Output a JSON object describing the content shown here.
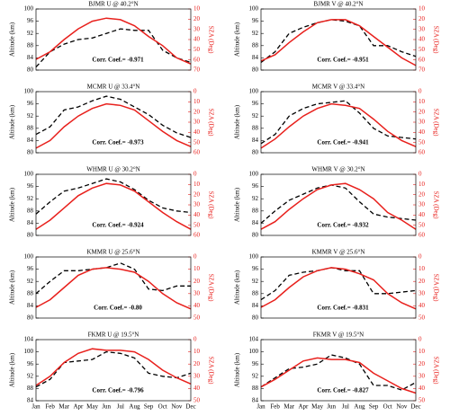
{
  "chart_data": [
    {
      "type": "line",
      "title": "BJMR U @ 40.2°N",
      "ylabel": "Altitude (km)",
      "y2label": "SZA (Deg)",
      "annotation": "Corr. Coef.= -0.971",
      "ylim": [
        80,
        100
      ],
      "yticks": [
        80,
        84,
        88,
        92,
        96,
        100
      ],
      "y2lim": [
        70,
        10
      ],
      "y2ticks": [
        10,
        20,
        30,
        40,
        50,
        60,
        70
      ],
      "y2color": "#e8201c",
      "series": [
        {
          "color": "#000000",
          "style": "dashed",
          "values": [
            81,
            86,
            88.5,
            90,
            90.5,
            92,
            93.5,
            93,
            93,
            86.5,
            84,
            82.5
          ]
        },
        {
          "color": "#e8201c",
          "style": "solid",
          "axis": "y2",
          "values": [
            59.5,
            52,
            40,
            29.5,
            22,
            19,
            20.5,
            26.5,
            37,
            46,
            58,
            64
          ]
        }
      ]
    },
    {
      "type": "line",
      "title": "BJMR V @ 40.2°N",
      "ylabel": "Altitude (km)",
      "y2label": "SZA (Deg)",
      "annotation": "Corr. Coef.= -0.951",
      "ylim": [
        80,
        100
      ],
      "yticks": [
        80,
        84,
        88,
        92,
        96,
        100
      ],
      "y2lim": [
        70,
        10
      ],
      "y2ticks": [
        10,
        20,
        30,
        40,
        50,
        60,
        70
      ],
      "y2color": "#e8201c",
      "series": [
        {
          "color": "#000000",
          "style": "dashed",
          "values": [
            82.5,
            86,
            92,
            94,
            95.5,
            96.5,
            96,
            94.5,
            88,
            88,
            86,
            84.5
          ]
        },
        {
          "color": "#e8201c",
          "style": "solid",
          "axis": "y2",
          "values": [
            61,
            55,
            43,
            32.5,
            23.5,
            20.5,
            20.5,
            26.5,
            37,
            47.5,
            58,
            65.5
          ]
        }
      ]
    },
    {
      "type": "line",
      "title": "MCMR U @ 33.4°N",
      "ylabel": "Altitude (km)",
      "y2label": "SZA (Deg)",
      "annotation": "Corr. Coef.= -0.973",
      "ylim": [
        80,
        100
      ],
      "yticks": [
        80,
        84,
        88,
        92,
        96,
        100
      ],
      "y2lim": [
        60,
        0
      ],
      "y2ticks": [
        0,
        10,
        20,
        30,
        40,
        50,
        60
      ],
      "y2color": "#e8201c",
      "series": [
        {
          "color": "#000000",
          "style": "dashed",
          "values": [
            86,
            88.5,
            94,
            95,
            97,
            98.5,
            97.5,
            95,
            92.5,
            89,
            86.5,
            85
          ]
        },
        {
          "color": "#e8201c",
          "style": "solid",
          "axis": "y2",
          "values": [
            55.5,
            48,
            34.5,
            24,
            16.5,
            12,
            13.5,
            18,
            28.5,
            39,
            48,
            54
          ]
        }
      ]
    },
    {
      "type": "line",
      "title": "MCMR V @ 33.4°N",
      "ylabel": "Altitude (km)",
      "y2label": "SZA (Deg)",
      "annotation": "Corr. Coef.= -0.941",
      "ylim": [
        80,
        100
      ],
      "yticks": [
        80,
        84,
        88,
        92,
        96,
        100
      ],
      "y2lim": [
        60,
        0
      ],
      "y2ticks": [
        0,
        10,
        20,
        30,
        40,
        50,
        60
      ],
      "y2color": "#e8201c",
      "series": [
        {
          "color": "#000000",
          "style": "dashed",
          "values": [
            83,
            86,
            92,
            94.5,
            96,
            96.5,
            97,
            93,
            88,
            85.5,
            85,
            84.5
          ]
        },
        {
          "color": "#e8201c",
          "style": "solid",
          "axis": "y2",
          "values": [
            55.5,
            46.5,
            34.5,
            24,
            16.5,
            12,
            13.5,
            16.5,
            27,
            39,
            48,
            54
          ]
        }
      ]
    },
    {
      "type": "line",
      "title": "WHMR U @ 30.2°N",
      "ylabel": "Altitude (km)",
      "y2label": "SZA (Deg)",
      "annotation": "Corr. Coef.= -0.924",
      "ylim": [
        80,
        100
      ],
      "yticks": [
        80,
        84,
        88,
        92,
        96,
        100
      ],
      "y2lim": [
        60,
        0
      ],
      "y2ticks": [
        0,
        10,
        20,
        30,
        40,
        50,
        60
      ],
      "y2color": "#e8201c",
      "series": [
        {
          "color": "#000000",
          "style": "dashed",
          "values": [
            87,
            91,
            94.5,
            95.5,
            97,
            98.5,
            97.5,
            95,
            91.5,
            89,
            88,
            87.5
          ]
        },
        {
          "color": "#e8201c",
          "style": "solid",
          "axis": "y2",
          "values": [
            54,
            45,
            33,
            21,
            13.5,
            9,
            10.5,
            16.5,
            27,
            37.5,
            46.5,
            54
          ]
        }
      ]
    },
    {
      "type": "line",
      "title": "WHMR V @ 30.2°N",
      "ylabel": "Altitude (km)",
      "y2label": "SZA (Deg)",
      "annotation": "Corr. Coef.= -0.932",
      "ylim": [
        80,
        100
      ],
      "yticks": [
        80,
        84,
        88,
        92,
        96,
        100
      ],
      "y2lim": [
        60,
        0
      ],
      "y2ticks": [
        0,
        10,
        20,
        30,
        40,
        50,
        60
      ],
      "y2color": "#e8201c",
      "series": [
        {
          "color": "#000000",
          "style": "dashed",
          "values": [
            84,
            88,
            91.5,
            93.5,
            95.5,
            96.5,
            95.5,
            91,
            87,
            86,
            85.5,
            85
          ]
        },
        {
          "color": "#e8201c",
          "style": "solid",
          "axis": "y2",
          "values": [
            54,
            46.5,
            34.5,
            24,
            15,
            10.5,
            9,
            15,
            24,
            37.5,
            45,
            54
          ]
        }
      ]
    },
    {
      "type": "line",
      "title": "KMMR U @ 25.6°N",
      "ylabel": "Altitude (km)",
      "y2label": "SZA (Deg)",
      "annotation": "Corr. Coef.= -0.80",
      "ylim": [
        80,
        100
      ],
      "yticks": [
        80,
        84,
        88,
        92,
        96,
        100
      ],
      "y2lim": [
        50,
        0
      ],
      "y2ticks": [
        0,
        10,
        20,
        30,
        40,
        50
      ],
      "y2color": "#e8201c",
      "series": [
        {
          "color": "#000000",
          "style": "dashed",
          "values": [
            88,
            92,
            95.5,
            95.5,
            96,
            96.5,
            98,
            96,
            89.5,
            89,
            90.5,
            90.5
          ]
        },
        {
          "color": "#e8201c",
          "style": "solid",
          "axis": "y2",
          "values": [
            41.25,
            35,
            25,
            15,
            10,
            8.75,
            10,
            12.5,
            20,
            30,
            37.5,
            42.5
          ]
        }
      ]
    },
    {
      "type": "line",
      "title": "KMMR V @ 25.6°N",
      "ylabel": "Altitude (km)",
      "y2label": "SZA (Deg)",
      "annotation": "Corr. Coef.= -0.831",
      "ylim": [
        80,
        100
      ],
      "yticks": [
        80,
        84,
        88,
        92,
        96,
        100
      ],
      "y2lim": [
        50,
        0
      ],
      "y2ticks": [
        0,
        10,
        20,
        30,
        40,
        50
      ],
      "y2color": "#e8201c",
      "series": [
        {
          "color": "#000000",
          "style": "dashed",
          "values": [
            86,
            89,
            94,
            95,
            95.5,
            96.5,
            95.5,
            95.5,
            88,
            88,
            88.5,
            89
          ]
        },
        {
          "color": "#e8201c",
          "style": "solid",
          "axis": "y2",
          "values": [
            41.25,
            35,
            25,
            16.25,
            11.25,
            8.75,
            10,
            13.75,
            18.75,
            30,
            37.5,
            42.5
          ]
        }
      ]
    },
    {
      "type": "line",
      "title": "FKMR U @ 19.5°N",
      "ylabel": "Altitude (km)",
      "y2label": "SZA (Deg)",
      "annotation": "Corr. Coef.= -0.796",
      "categories": [
        "Jan",
        "Feb",
        "Mar",
        "Apr",
        "May",
        "Jun",
        "Jul",
        "Aug",
        "Sep",
        "Oct",
        "Nov",
        "Dec"
      ],
      "ylim": [
        84,
        104
      ],
      "yticks": [
        84,
        88,
        92,
        96,
        100,
        104
      ],
      "y2lim": [
        50,
        0
      ],
      "y2ticks": [
        0,
        10,
        20,
        30,
        40,
        50
      ],
      "y2color": "#e8201c",
      "series": [
        {
          "color": "#000000",
          "style": "dashed",
          "values": [
            88.5,
            91,
            96.5,
            97,
            97.5,
            100,
            99.5,
            98,
            93,
            92,
            91.5,
            93
          ]
        },
        {
          "color": "#e8201c",
          "style": "solid",
          "axis": "y2",
          "values": [
            37.5,
            30,
            18.75,
            11.25,
            7.5,
            8.75,
            8.75,
            10,
            16.25,
            25,
            31.25,
            36.25
          ]
        }
      ]
    },
    {
      "type": "line",
      "title": "FKMR V @ 19.5°N",
      "ylabel": "Altitude (km)",
      "y2label": "SZA (Deg)",
      "annotation": "Corr. Coef.= -0.827",
      "categories": [
        "Jan",
        "Feb",
        "Mar",
        "Apr",
        "May",
        "Jun",
        "Jul",
        "Aug",
        "Sep",
        "Oct",
        "Nov",
        "Dec"
      ],
      "ylim": [
        84,
        104
      ],
      "yticks": [
        84,
        88,
        92,
        96,
        100,
        104
      ],
      "y2lim": [
        50,
        0
      ],
      "y2ticks": [
        0,
        10,
        20,
        30,
        40,
        50
      ],
      "y2color": "#e8201c",
      "series": [
        {
          "color": "#000000",
          "style": "dashed",
          "values": [
            88.5,
            91.5,
            94.5,
            95,
            96,
            99,
            98,
            96,
            89,
            89,
            87.5,
            90
          ]
        },
        {
          "color": "#e8201c",
          "style": "solid",
          "axis": "y2",
          "values": [
            38.75,
            32.5,
            25,
            17.5,
            15,
            16.25,
            16.25,
            18.75,
            27.5,
            33.75,
            40,
            43.75
          ]
        }
      ]
    }
  ]
}
